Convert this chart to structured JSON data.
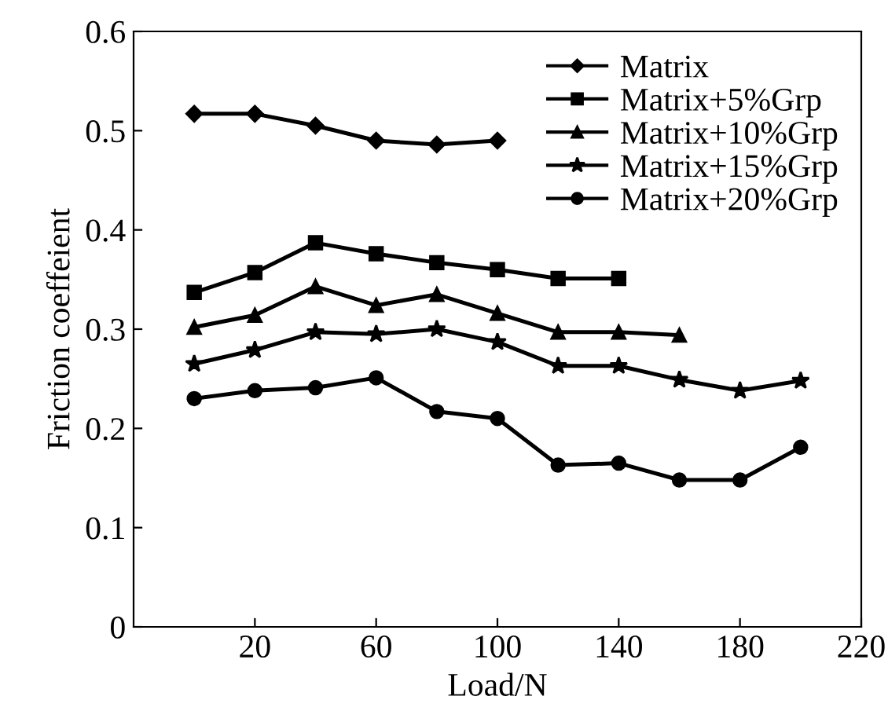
{
  "chart_data": {
    "type": "line",
    "xlabel": "Load/N",
    "ylabel": "Friction coeffeient",
    "x": [
      0,
      20,
      40,
      60,
      80,
      100,
      120,
      140,
      160,
      180,
      200
    ],
    "xlim": [
      -20,
      220
    ],
    "xticks": [
      20,
      60,
      100,
      140,
      180,
      220
    ],
    "ylim": [
      0,
      0.6
    ],
    "yticks": [
      0,
      0.1,
      0.2,
      0.3,
      0.4,
      0.5,
      0.6
    ],
    "grid": false,
    "legend": "top right",
    "line_style": "solid",
    "series": [
      {
        "name": "Matrix",
        "color": "#000000",
        "marker": "diamond",
        "values": [
          0.517,
          0.517,
          0.505,
          0.49,
          0.486,
          0.49,
          null,
          null,
          null,
          null,
          null
        ]
      },
      {
        "name": "Matrix+5%Grp",
        "color": "#000000",
        "marker": "square",
        "values": [
          0.337,
          0.357,
          0.387,
          0.376,
          0.367,
          0.36,
          0.351,
          0.351,
          null,
          null,
          null
        ]
      },
      {
        "name": "Matrix+10%Grp",
        "color": "#000000",
        "marker": "triangle",
        "values": [
          0.302,
          0.314,
          0.343,
          0.324,
          0.335,
          0.316,
          0.297,
          0.297,
          0.294,
          null,
          null
        ]
      },
      {
        "name": "Matrix+15%Grp",
        "color": "#000000",
        "marker": "star",
        "values": [
          0.265,
          0.279,
          0.297,
          0.295,
          0.3,
          0.287,
          0.263,
          0.263,
          0.249,
          0.238,
          0.248
        ]
      },
      {
        "name": "Matrix+20%Grp",
        "color": "#000000",
        "marker": "circle",
        "values": [
          0.23,
          0.238,
          0.241,
          0.251,
          0.217,
          0.21,
          0.163,
          0.165,
          0.148,
          0.148,
          0.181
        ]
      }
    ]
  }
}
